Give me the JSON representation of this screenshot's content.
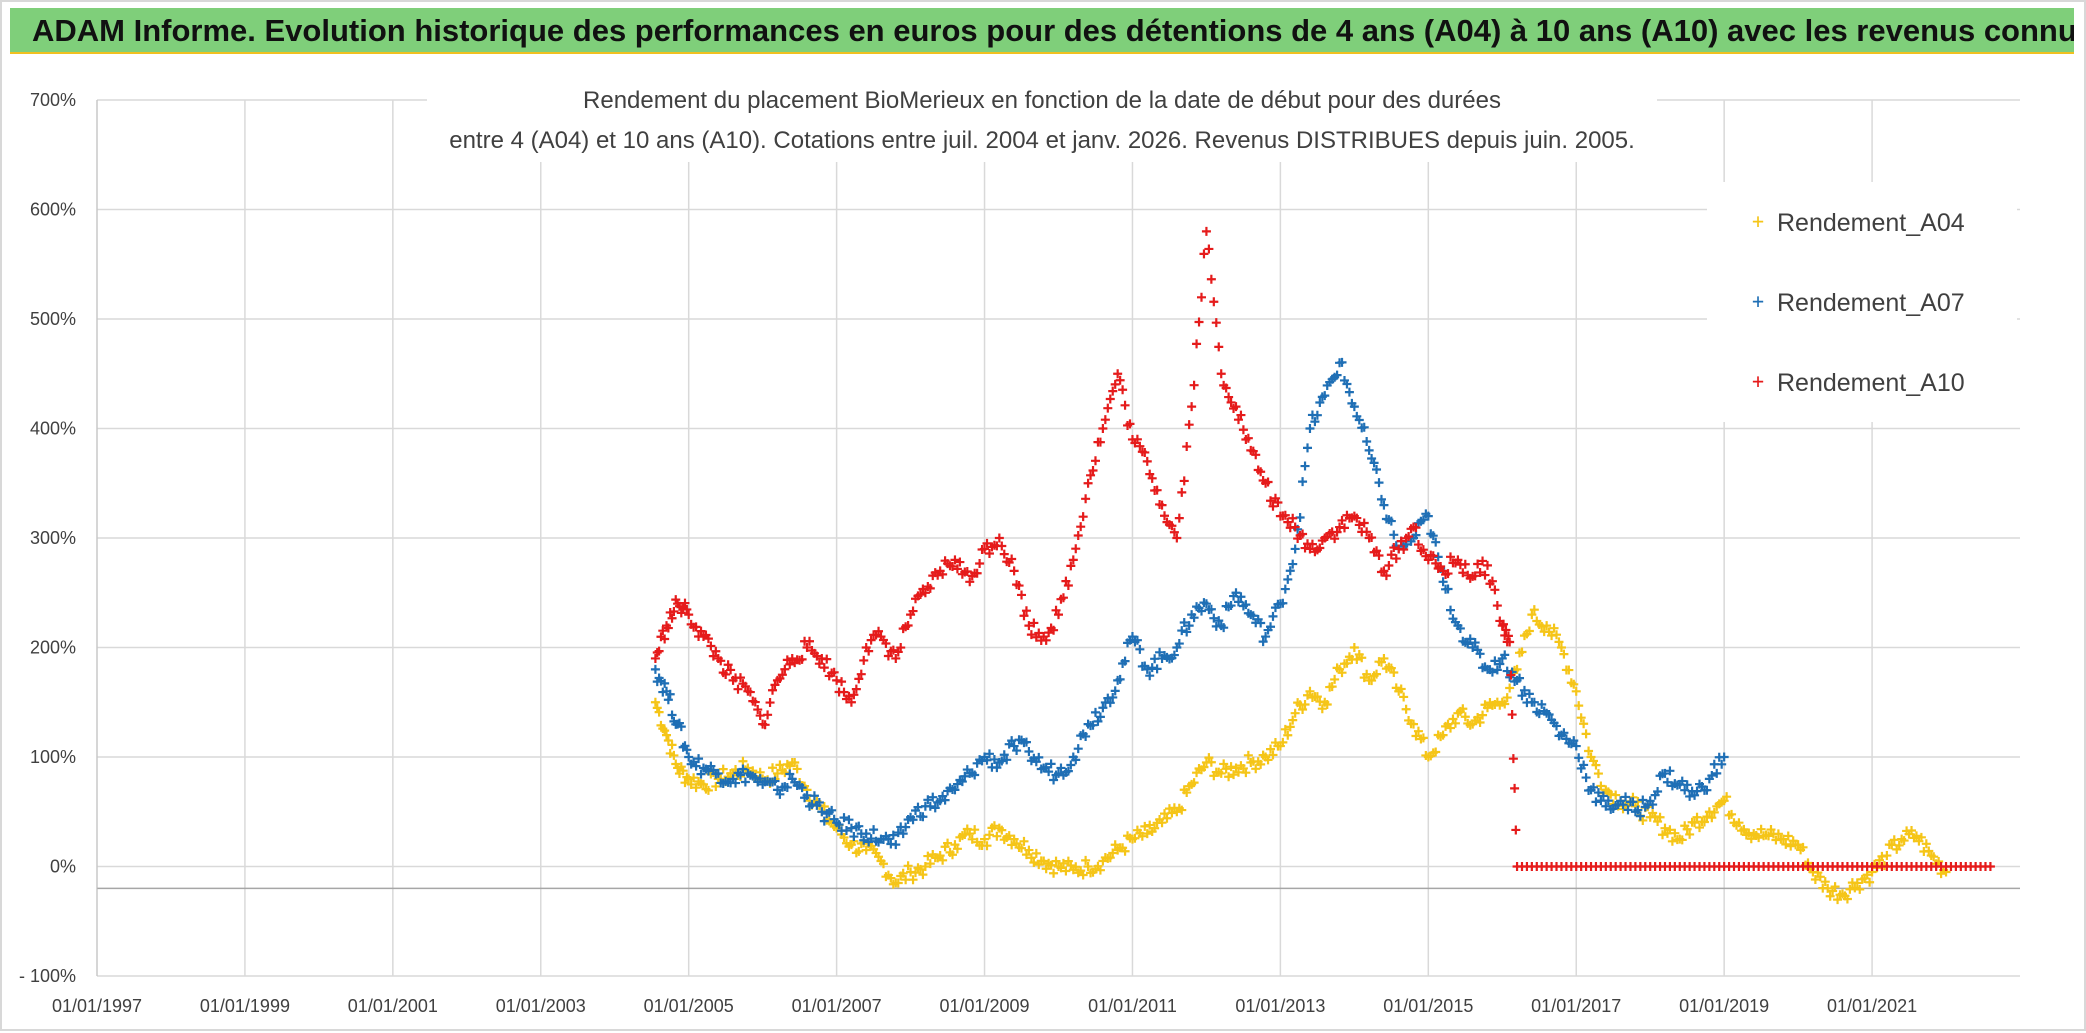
{
  "banner": {
    "title": "ADAM Informe. Evolution historique des performances en euros pour des détentions de 4 ans (A04) à 10 ans (A10) avec les revenus connus distribués"
  },
  "chart_data": {
    "type": "scatter",
    "title_line1": "Rendement du placement BioMerieux en fonction de la date de début pour des durées",
    "title_line2": "entre 4 (A04) et 10 ans (A10). Cotations entre juil. 2004 et janv. 2026. Revenus DISTRIBUES depuis juin. 2005.",
    "xlabel": "",
    "ylabel": "",
    "xlim": [
      1997.0,
      2023.0
    ],
    "ylim": [
      -100,
      700
    ],
    "x_ticks": [
      {
        "x": 1997,
        "label": "01/01/1997"
      },
      {
        "x": 1999,
        "label": "01/01/1999"
      },
      {
        "x": 2001,
        "label": "01/01/2001"
      },
      {
        "x": 2003,
        "label": "01/01/2003"
      },
      {
        "x": 2005,
        "label": "01/01/2005"
      },
      {
        "x": 2007,
        "label": "01/01/2007"
      },
      {
        "x": 2009,
        "label": "01/01/2009"
      },
      {
        "x": 2011,
        "label": "01/01/2011"
      },
      {
        "x": 2013,
        "label": "01/01/2013"
      },
      {
        "x": 2015,
        "label": "01/01/2015"
      },
      {
        "x": 2017,
        "label": "01/01/2017"
      },
      {
        "x": 2019,
        "label": "01/01/2019"
      },
      {
        "x": 2021,
        "label": "01/01/2021"
      }
    ],
    "y_ticks": [
      {
        "y": -100,
        "label": "- 100%"
      },
      {
        "y": 0,
        "label": "0%"
      },
      {
        "y": 100,
        "label": "100%"
      },
      {
        "y": 200,
        "label": "200%"
      },
      {
        "y": 300,
        "label": "300%"
      },
      {
        "y": 400,
        "label": "400%"
      },
      {
        "y": 500,
        "label": "500%"
      },
      {
        "y": 600,
        "label": "600%"
      },
      {
        "y": 700,
        "label": "700%"
      }
    ],
    "grid": true,
    "legend_position": "top-right",
    "marker": "+",
    "series": [
      {
        "name": "Rendement_A04",
        "color": "#f5c518",
        "points": [
          [
            2004.55,
            150
          ],
          [
            2004.7,
            120
          ],
          [
            2004.85,
            90
          ],
          [
            2005.0,
            80
          ],
          [
            2005.2,
            75
          ],
          [
            2005.4,
            80
          ],
          [
            2005.6,
            85
          ],
          [
            2005.8,
            90
          ],
          [
            2006.0,
            80
          ],
          [
            2006.2,
            85
          ],
          [
            2006.4,
            95
          ],
          [
            2006.6,
            70
          ],
          [
            2006.8,
            50
          ],
          [
            2007.0,
            35
          ],
          [
            2007.2,
            20
          ],
          [
            2007.4,
            15
          ],
          [
            2007.6,
            5
          ],
          [
            2007.8,
            -15
          ],
          [
            2008.0,
            -5
          ],
          [
            2008.2,
            0
          ],
          [
            2008.4,
            10
          ],
          [
            2008.6,
            20
          ],
          [
            2008.8,
            30
          ],
          [
            2009.0,
            25
          ],
          [
            2009.2,
            35
          ],
          [
            2009.4,
            25
          ],
          [
            2009.6,
            15
          ],
          [
            2009.8,
            5
          ],
          [
            2010.0,
            0
          ],
          [
            2010.2,
            -3
          ],
          [
            2010.4,
            0
          ],
          [
            2010.6,
            5
          ],
          [
            2010.8,
            15
          ],
          [
            2011.0,
            25
          ],
          [
            2011.2,
            30
          ],
          [
            2011.4,
            40
          ],
          [
            2011.6,
            50
          ],
          [
            2011.8,
            75
          ],
          [
            2012.0,
            95
          ],
          [
            2012.2,
            85
          ],
          [
            2012.4,
            90
          ],
          [
            2012.6,
            95
          ],
          [
            2012.8,
            100
          ],
          [
            2013.0,
            110
          ],
          [
            2013.2,
            140
          ],
          [
            2013.4,
            160
          ],
          [
            2013.6,
            150
          ],
          [
            2013.8,
            180
          ],
          [
            2014.0,
            200
          ],
          [
            2014.2,
            170
          ],
          [
            2014.4,
            190
          ],
          [
            2014.6,
            160
          ],
          [
            2014.8,
            130
          ],
          [
            2015.0,
            100
          ],
          [
            2015.2,
            120
          ],
          [
            2015.4,
            140
          ],
          [
            2015.6,
            130
          ],
          [
            2015.8,
            145
          ],
          [
            2016.0,
            150
          ],
          [
            2016.2,
            180
          ],
          [
            2016.4,
            230
          ],
          [
            2016.6,
            220
          ],
          [
            2016.8,
            200
          ],
          [
            2017.0,
            160
          ],
          [
            2017.2,
            100
          ],
          [
            2017.4,
            70
          ],
          [
            2017.6,
            60
          ],
          [
            2017.8,
            55
          ],
          [
            2018.0,
            45
          ],
          [
            2018.2,
            35
          ],
          [
            2018.4,
            25
          ],
          [
            2018.6,
            40
          ],
          [
            2018.8,
            50
          ],
          [
            2019.0,
            60
          ],
          [
            2019.2,
            40
          ],
          [
            2019.4,
            30
          ],
          [
            2019.6,
            28
          ],
          [
            2019.8,
            25
          ],
          [
            2020.0,
            20
          ],
          [
            2020.2,
            -5
          ],
          [
            2020.4,
            -20
          ],
          [
            2020.6,
            -25
          ],
          [
            2020.8,
            -15
          ],
          [
            2021.0,
            -5
          ],
          [
            2021.2,
            10
          ],
          [
            2021.4,
            25
          ],
          [
            2021.6,
            28
          ],
          [
            2021.8,
            10
          ],
          [
            2022.0,
            -5
          ]
        ]
      },
      {
        "name": "Rendement_A07",
        "color": "#1f6fb5",
        "points": [
          [
            2004.55,
            180
          ],
          [
            2004.7,
            160
          ],
          [
            2004.85,
            130
          ],
          [
            2005.0,
            100
          ],
          [
            2005.2,
            90
          ],
          [
            2005.4,
            85
          ],
          [
            2005.6,
            80
          ],
          [
            2005.8,
            85
          ],
          [
            2006.0,
            75
          ],
          [
            2006.2,
            70
          ],
          [
            2006.4,
            80
          ],
          [
            2006.6,
            65
          ],
          [
            2006.8,
            50
          ],
          [
            2007.0,
            40
          ],
          [
            2007.2,
            35
          ],
          [
            2007.4,
            30
          ],
          [
            2007.6,
            25
          ],
          [
            2007.8,
            20
          ],
          [
            2008.0,
            45
          ],
          [
            2008.2,
            55
          ],
          [
            2008.4,
            60
          ],
          [
            2008.6,
            70
          ],
          [
            2008.8,
            85
          ],
          [
            2009.0,
            100
          ],
          [
            2009.2,
            95
          ],
          [
            2009.4,
            110
          ],
          [
            2009.6,
            105
          ],
          [
            2009.8,
            90
          ],
          [
            2010.0,
            85
          ],
          [
            2010.2,
            100
          ],
          [
            2010.4,
            130
          ],
          [
            2010.6,
            145
          ],
          [
            2010.8,
            170
          ],
          [
            2011.0,
            210
          ],
          [
            2011.2,
            180
          ],
          [
            2011.4,
            190
          ],
          [
            2011.6,
            200
          ],
          [
            2011.8,
            230
          ],
          [
            2012.0,
            240
          ],
          [
            2012.2,
            220
          ],
          [
            2012.4,
            250
          ],
          [
            2012.6,
            230
          ],
          [
            2012.8,
            210
          ],
          [
            2013.0,
            240
          ],
          [
            2013.2,
            290
          ],
          [
            2013.4,
            400
          ],
          [
            2013.6,
            430
          ],
          [
            2013.8,
            460
          ],
          [
            2014.0,
            420
          ],
          [
            2014.2,
            380
          ],
          [
            2014.4,
            330
          ],
          [
            2014.6,
            290
          ],
          [
            2014.8,
            300
          ],
          [
            2015.0,
            320
          ],
          [
            2015.2,
            260
          ],
          [
            2015.4,
            220
          ],
          [
            2015.6,
            200
          ],
          [
            2015.8,
            180
          ],
          [
            2016.0,
            190
          ],
          [
            2016.2,
            170
          ],
          [
            2016.4,
            150
          ],
          [
            2016.6,
            140
          ],
          [
            2016.8,
            120
          ],
          [
            2017.0,
            110
          ],
          [
            2017.2,
            70
          ],
          [
            2017.4,
            55
          ],
          [
            2017.6,
            60
          ],
          [
            2017.8,
            50
          ],
          [
            2018.0,
            60
          ],
          [
            2018.2,
            85
          ],
          [
            2018.4,
            75
          ],
          [
            2018.6,
            65
          ],
          [
            2018.8,
            80
          ],
          [
            2019.0,
            100
          ]
        ]
      },
      {
        "name": "Rendement_A10",
        "color": "#e51b1b",
        "points": [
          [
            2004.55,
            190
          ],
          [
            2004.7,
            220
          ],
          [
            2004.85,
            240
          ],
          [
            2005.0,
            230
          ],
          [
            2005.2,
            210
          ],
          [
            2005.4,
            190
          ],
          [
            2005.6,
            170
          ],
          [
            2005.8,
            160
          ],
          [
            2006.0,
            130
          ],
          [
            2006.2,
            170
          ],
          [
            2006.4,
            190
          ],
          [
            2006.6,
            200
          ],
          [
            2006.8,
            190
          ],
          [
            2007.0,
            170
          ],
          [
            2007.2,
            150
          ],
          [
            2007.4,
            200
          ],
          [
            2007.6,
            210
          ],
          [
            2007.8,
            190
          ],
          [
            2008.0,
            230
          ],
          [
            2008.2,
            250
          ],
          [
            2008.4,
            270
          ],
          [
            2008.6,
            280
          ],
          [
            2008.8,
            260
          ],
          [
            2009.0,
            290
          ],
          [
            2009.2,
            300
          ],
          [
            2009.4,
            270
          ],
          [
            2009.6,
            220
          ],
          [
            2009.8,
            210
          ],
          [
            2010.0,
            230
          ],
          [
            2010.2,
            280
          ],
          [
            2010.4,
            350
          ],
          [
            2010.6,
            400
          ],
          [
            2010.8,
            450
          ],
          [
            2011.0,
            390
          ],
          [
            2011.2,
            370
          ],
          [
            2011.4,
            330
          ],
          [
            2011.6,
            300
          ],
          [
            2011.8,
            420
          ],
          [
            2012.0,
            580
          ],
          [
            2012.2,
            450
          ],
          [
            2012.4,
            420
          ],
          [
            2012.6,
            380
          ],
          [
            2012.8,
            350
          ],
          [
            2013.0,
            320
          ],
          [
            2013.2,
            310
          ],
          [
            2013.4,
            290
          ],
          [
            2013.6,
            300
          ],
          [
            2013.8,
            310
          ],
          [
            2014.0,
            320
          ],
          [
            2014.2,
            300
          ],
          [
            2014.4,
            270
          ],
          [
            2014.6,
            290
          ],
          [
            2014.8,
            310
          ],
          [
            2015.0,
            280
          ],
          [
            2015.2,
            270
          ],
          [
            2015.4,
            280
          ],
          [
            2015.6,
            265
          ],
          [
            2015.8,
            275
          ],
          [
            2016.0,
            220
          ],
          [
            2016.1,
            205
          ],
          [
            2016.2,
            0
          ],
          [
            2016.6,
            0
          ],
          [
            2017.0,
            0
          ],
          [
            2017.4,
            0
          ],
          [
            2017.8,
            0
          ],
          [
            2018.2,
            0
          ],
          [
            2018.6,
            0
          ],
          [
            2019.0,
            0
          ],
          [
            2019.4,
            0
          ],
          [
            2019.8,
            0
          ],
          [
            2020.2,
            0
          ],
          [
            2020.6,
            0
          ],
          [
            2021.0,
            0
          ],
          [
            2021.4,
            0
          ],
          [
            2021.8,
            0
          ],
          [
            2022.2,
            0
          ],
          [
            2022.6,
            0
          ]
        ]
      }
    ]
  }
}
